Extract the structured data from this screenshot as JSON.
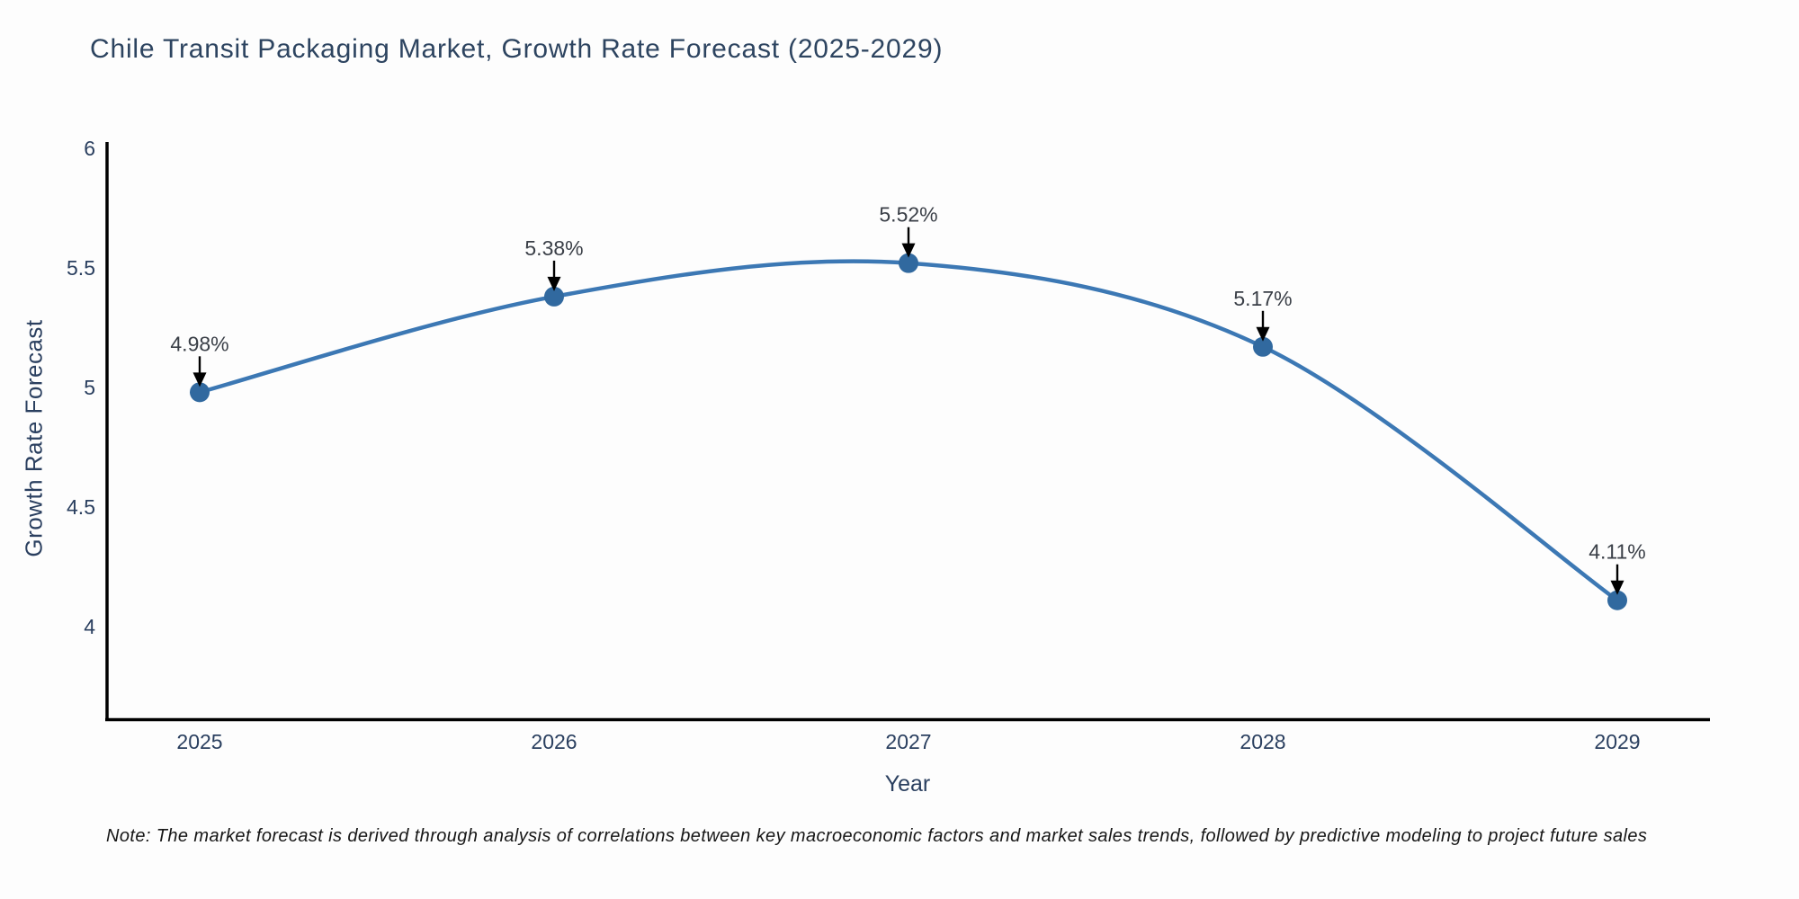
{
  "title": "Chile Transit Packaging Market, Growth Rate Forecast (2025-2029)",
  "note": "Note: The market forecast is derived through analysis of correlations between key macroeconomic factors and market sales trends, followed by predictive modeling to project future sales",
  "chart_data": {
    "type": "line",
    "title": "Chile Transit Packaging Market, Growth Rate Forecast (2025-2029)",
    "categories": [
      "2025",
      "2026",
      "2027",
      "2028",
      "2029"
    ],
    "series": [
      {
        "name": "Growth Rate Forecast",
        "values": [
          4.98,
          5.38,
          5.52,
          5.17,
          4.11
        ]
      }
    ],
    "data_labels": [
      "4.98%",
      "5.38%",
      "5.52%",
      "5.17%",
      "4.11%"
    ],
    "xlabel": "Year",
    "ylabel": "Growth Rate Forecast",
    "ytick_labels": [
      "6",
      "5.5",
      "5",
      "4.5",
      "4"
    ],
    "ytick_values": [
      6,
      5.5,
      5,
      4.5,
      4
    ],
    "ylim": [
      3.6,
      6.03
    ],
    "grid": false,
    "legend_position": "none",
    "line_shape": "spline",
    "marker_style": "circle",
    "annotation_arrows": true,
    "colors": {
      "line": "#3c78b4",
      "marker": "#31699f",
      "axis": "#000000",
      "tick_text": "#2a3f5f",
      "annotation_text": "#3a3f47",
      "arrow": "#000000"
    }
  }
}
